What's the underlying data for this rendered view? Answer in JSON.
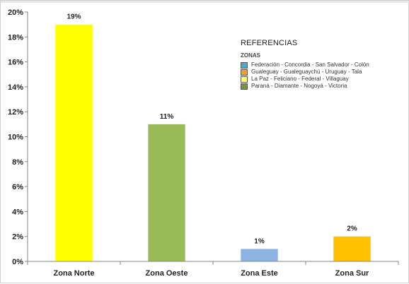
{
  "chart_data": {
    "type": "bar",
    "categories": [
      "Zona Norte",
      "Zona Oeste",
      "Zona Este",
      "Zona Sur"
    ],
    "values": [
      19,
      11,
      1,
      2
    ],
    "value_labels": [
      "19%",
      "11%",
      "1%",
      "2%"
    ],
    "bar_colors": [
      "#ffff00",
      "#9bbb59",
      "#8db3e2",
      "#ffc000"
    ],
    "yticks": [
      "0%",
      "2%",
      "4%",
      "6%",
      "8%",
      "10%",
      "12%",
      "14%",
      "16%",
      "18%",
      "20%"
    ],
    "ylim": [
      0,
      20
    ],
    "grid": false,
    "legend": {
      "title": "REFERENCIAS",
      "subtitle": "ZONAS",
      "placement": "top-right",
      "items": [
        {
          "label": "Federación - Concordia - San Salvador - Colón",
          "color": "#4bacc6"
        },
        {
          "label": "Gualeguay - Gualeguaychú - Uruguay - Tala",
          "color": "#f0a030"
        },
        {
          "label": "La Paz - Feliciano - Federal - Villaguay",
          "color": "#ffff66"
        },
        {
          "label": "Paraná - Diamante - Nogoyá - Victoria",
          "color": "#77933c"
        }
      ]
    }
  }
}
